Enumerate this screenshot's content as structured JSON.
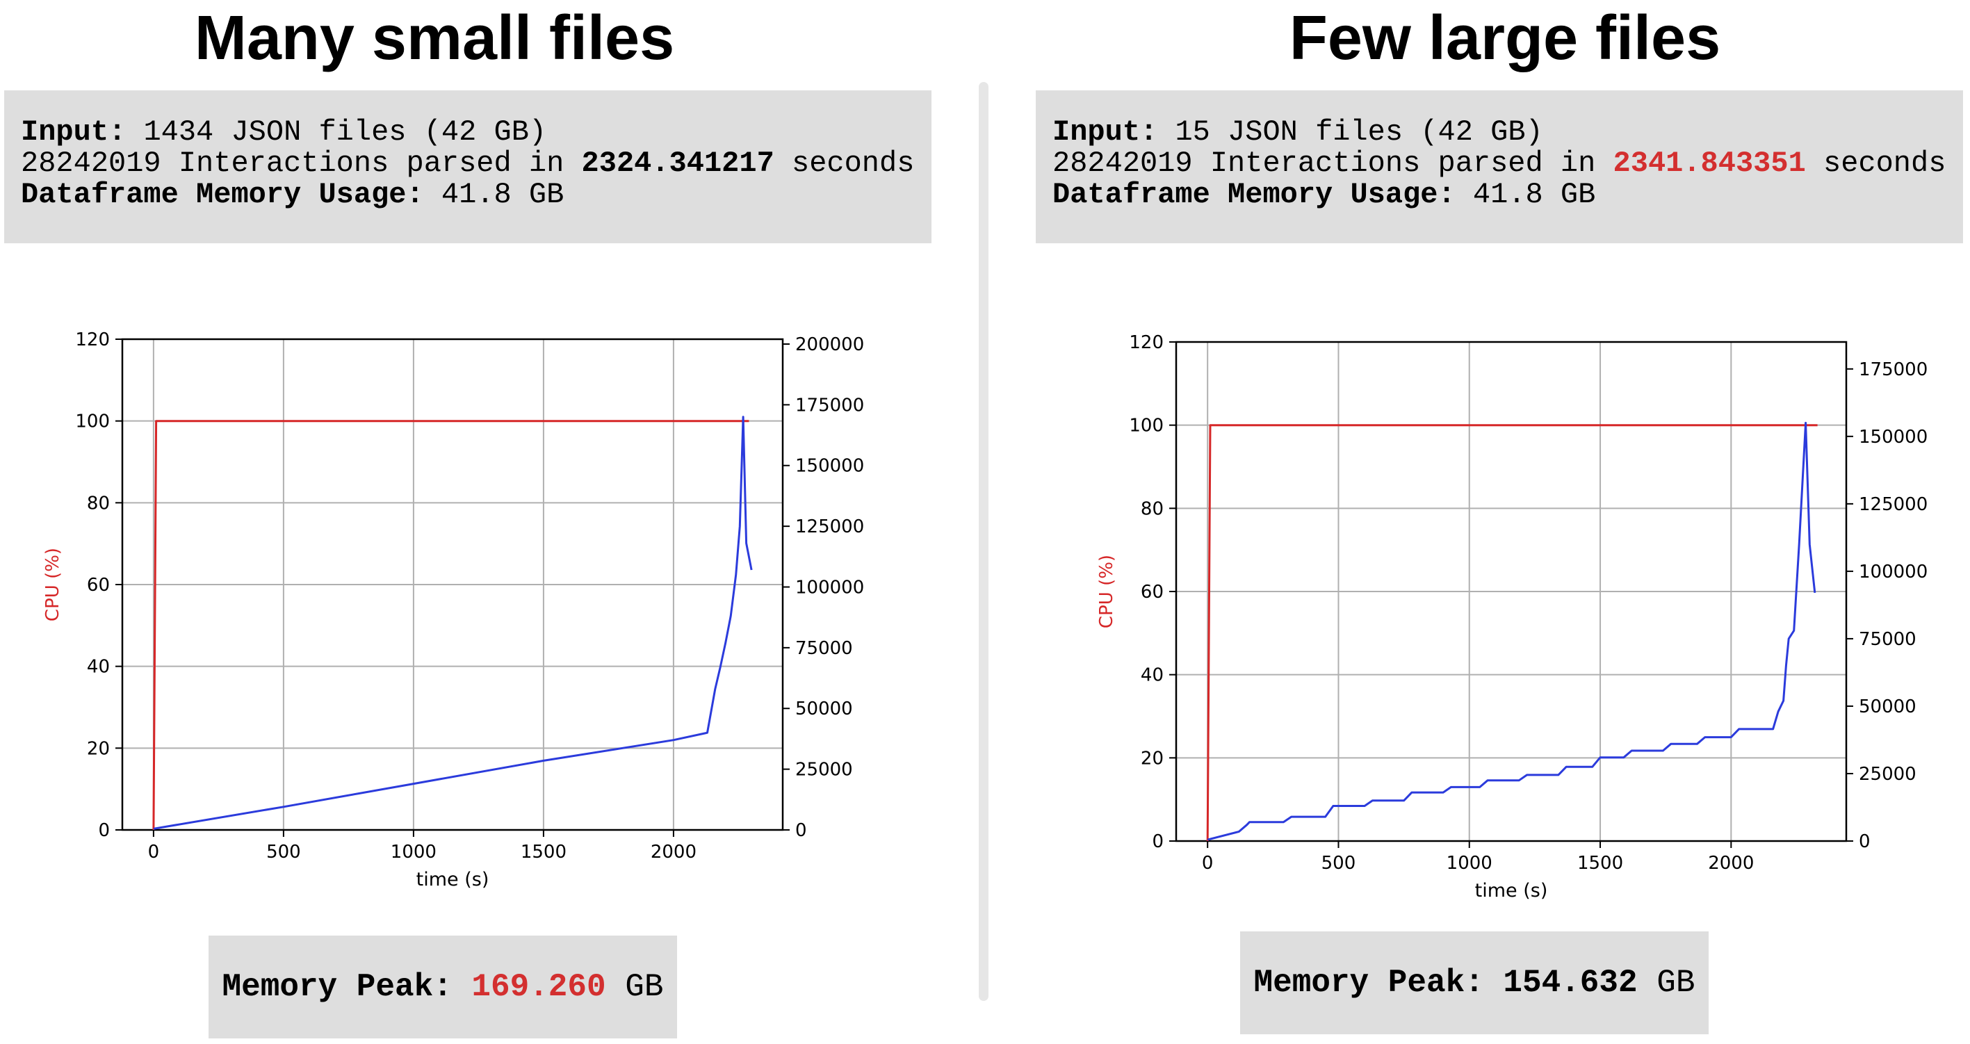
{
  "panels": [
    {
      "title": "Many small files",
      "info": {
        "input_label": "Input:",
        "input_value": " 1434 JSON files (42 GB)",
        "parsed_prefix": "28242019 Interactions parsed in ",
        "parsed_seconds": "2324.341217",
        "parsed_suffix": " seconds",
        "memory_label": "Dataframe Memory Usage:",
        "memory_value": " 41.8 GB"
      },
      "peak": {
        "label": "Memory Peak: ",
        "value": "169.260",
        "unit": " GB"
      }
    },
    {
      "title": "Few large files",
      "info": {
        "input_label": "Input:",
        "input_value": " 15 JSON files (42 GB)",
        "parsed_prefix": "28242019 Interactions parsed in ",
        "parsed_seconds": "2341.843351",
        "parsed_suffix": " seconds",
        "memory_label": "Dataframe Memory Usage:",
        "memory_value": " 41.8 GB"
      },
      "peak": {
        "label": "Memory Peak: ",
        "value": "154.632",
        "unit": " GB"
      }
    }
  ],
  "colors": {
    "cpu": "#d62728",
    "memory": "#2b3bdc",
    "highlight": "#d32f2f",
    "box_bg": "#dedede",
    "grid": "#b0b0b0"
  },
  "chart_data": [
    {
      "type": "line",
      "title": "",
      "xlabel": "time (s)",
      "ylabel": "CPU (%)",
      "y2label": "",
      "xlim": [
        -120,
        2420
      ],
      "ylim": [
        0,
        120
      ],
      "y2lim": [
        0,
        202000
      ],
      "x_ticks": [
        "0",
        "500",
        "1000",
        "1500",
        "2000"
      ],
      "y_ticks": [
        "0",
        "20",
        "40",
        "60",
        "80",
        "100",
        "120"
      ],
      "y2_ticks": [
        "0",
        "25000",
        "50000",
        "75000",
        "100000",
        "125000",
        "150000",
        "175000",
        "200000"
      ],
      "grid": true,
      "series": [
        {
          "axis": "left",
          "x": [
            0,
            10,
            20,
            500,
            1000,
            1500,
            2000,
            2290
          ],
          "values": [
            0,
            100,
            100,
            100,
            100,
            100,
            100,
            100
          ]
        },
        {
          "axis": "right",
          "x": [
            0,
            500,
            1000,
            1500,
            2000,
            2130,
            2160,
            2180,
            2200,
            2220,
            2240,
            2255,
            2268,
            2280,
            2300
          ],
          "values": [
            500,
            9500,
            19000,
            28500,
            37000,
            40000,
            58000,
            67000,
            77000,
            88000,
            105000,
            125000,
            170000,
            118000,
            107000
          ]
        }
      ]
    },
    {
      "type": "line",
      "title": "",
      "xlabel": "time (s)",
      "ylabel": "CPU (%)",
      "y2label": "",
      "xlim": [
        -120,
        2440
      ],
      "ylim": [
        0,
        120
      ],
      "y2lim": [
        0,
        185000
      ],
      "x_ticks": [
        "0",
        "500",
        "1000",
        "1500",
        "2000"
      ],
      "y_ticks": [
        "0",
        "20",
        "40",
        "60",
        "80",
        "100",
        "120"
      ],
      "y2_ticks": [
        "0",
        "25000",
        "50000",
        "75000",
        "100000",
        "125000",
        "150000",
        "175000"
      ],
      "grid": true,
      "series": [
        {
          "axis": "left",
          "x": [
            0,
            10,
            20,
            500,
            1000,
            1500,
            2000,
            2330
          ],
          "values": [
            0,
            100,
            100,
            100,
            100,
            100,
            100,
            100
          ]
        },
        {
          "axis": "right",
          "x": [
            0,
            120,
            150,
            160,
            290,
            320,
            450,
            480,
            600,
            630,
            750,
            780,
            900,
            930,
            1040,
            1070,
            1190,
            1220,
            1340,
            1370,
            1470,
            1500,
            1590,
            1620,
            1740,
            1770,
            1870,
            1900,
            2000,
            2030,
            2160,
            2180,
            2200,
            2210,
            2220,
            2240,
            2260,
            2285,
            2300,
            2320
          ],
          "values": [
            500,
            3500,
            6000,
            7000,
            7000,
            9000,
            9000,
            13000,
            13000,
            15000,
            15000,
            18000,
            18000,
            20000,
            20000,
            22500,
            22500,
            24500,
            24500,
            27500,
            27500,
            31000,
            31000,
            33500,
            33500,
            36000,
            36000,
            38500,
            38500,
            41500,
            41500,
            48000,
            52000,
            65000,
            75000,
            78000,
            110000,
            155000,
            110000,
            92000
          ]
        }
      ]
    }
  ]
}
